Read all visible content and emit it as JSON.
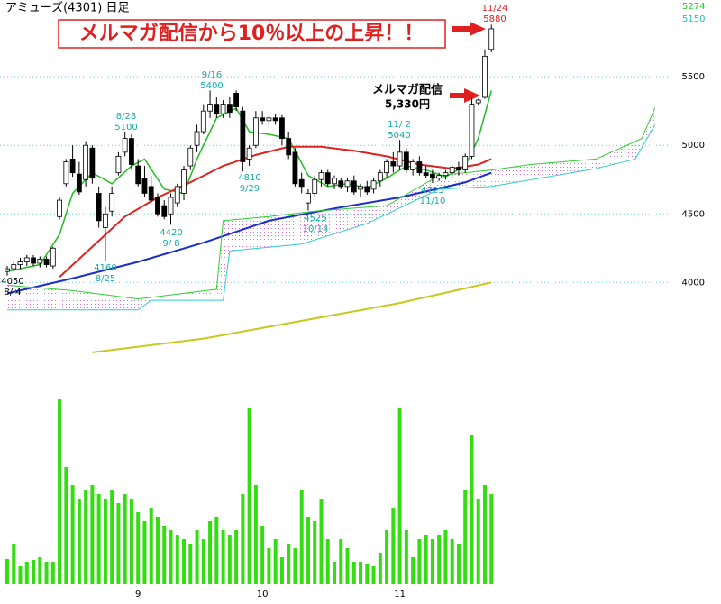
{
  "chart_data": {
    "type": "candlestick",
    "title": "アミューズ(4301) 日足",
    "banner": "メルマガ配信から10％以上の上昇！！",
    "callout": [
      "メルマガ配信",
      "5,330円"
    ],
    "categories": [
      null,
      null,
      null,
      null,
      null,
      null,
      null,
      null,
      null,
      null,
      null,
      null,
      null,
      null,
      null,
      null,
      null,
      null,
      null,
      null,
      "9",
      null,
      null,
      null,
      null,
      null,
      null,
      null,
      null,
      null,
      null,
      null,
      null,
      null,
      null,
      null,
      null,
      null,
      null,
      "10",
      null,
      null,
      null,
      null,
      null,
      null,
      null,
      null,
      null,
      null,
      null,
      null,
      null,
      null,
      null,
      null,
      null,
      null,
      null,
      null,
      "11",
      null,
      null,
      null,
      null,
      null,
      null,
      null,
      null,
      null,
      null,
      null,
      null,
      null,
      null
    ],
    "open": [
      4080,
      4100,
      4130,
      4150,
      4180,
      4140,
      4170,
      4120,
      4480,
      4720,
      4900,
      4790,
      4750,
      4980,
      4650,
      4400,
      4520,
      4800,
      4950,
      5050,
      4850,
      4760,
      4700,
      4620,
      4560,
      4500,
      4580,
      4650,
      4850,
      5000,
      5100,
      5250,
      5300,
      5230,
      5300,
      5380,
      5250,
      4900,
      5000,
      5200,
      5180,
      5200,
      5200,
      5050,
      4950,
      4750,
      4580,
      4650,
      4750,
      4800,
      4720,
      4740,
      4700,
      4740,
      4680,
      4700,
      4680,
      4740,
      4800,
      4880,
      4850,
      4950,
      4820,
      4880,
      4800,
      4790,
      4760,
      4780,
      4800,
      4840,
      4820,
      4920,
      5310,
      5350,
      5700
    ],
    "high": [
      4120,
      4150,
      4180,
      4200,
      4200,
      4190,
      4190,
      4260,
      4620,
      4900,
      5000,
      4880,
      5030,
      5000,
      4700,
      4550,
      4700,
      4950,
      5100,
      5080,
      4900,
      4850,
      4780,
      4650,
      4600,
      4650,
      4720,
      4850,
      5000,
      5150,
      5300,
      5400,
      5350,
      5330,
      5350,
      5400,
      5280,
      5000,
      5250,
      5250,
      5220,
      5230,
      5220,
      5100,
      4980,
      4800,
      4680,
      4780,
      4820,
      4820,
      4780,
      4760,
      4760,
      4780,
      4720,
      4740,
      4760,
      4820,
      4900,
      4950,
      5040,
      4980,
      4900,
      4920,
      4850,
      4820,
      4800,
      4820,
      4860,
      4880,
      4940,
      5350,
      5340,
      5700,
      5880
    ],
    "low": [
      4050,
      4080,
      4100,
      4120,
      4120,
      4110,
      4110,
      4100,
      4460,
      4700,
      4770,
      4640,
      4700,
      4720,
      4400,
      4160,
      4480,
      4780,
      4920,
      4820,
      4700,
      4620,
      4580,
      4480,
      4460,
      4420,
      4550,
      4600,
      4820,
      4950,
      5080,
      5200,
      5200,
      5200,
      5200,
      5250,
      4810,
      4850,
      4980,
      5150,
      5120,
      5150,
      5000,
      4900,
      4700,
      4650,
      4525,
      4620,
      4700,
      4700,
      4680,
      4680,
      4660,
      4640,
      4620,
      4640,
      4650,
      4700,
      4760,
      4800,
      4820,
      4800,
      4780,
      4780,
      4760,
      4725,
      4740,
      4750,
      4760,
      4780,
      4800,
      4900,
      5290,
      5340,
      5680
    ],
    "close": [
      4100,
      4130,
      4150,
      4180,
      4140,
      4170,
      4130,
      4250,
      4600,
      4880,
      4800,
      4660,
      5000,
      4760,
      4450,
      4500,
      4650,
      4920,
      5050,
      4860,
      4720,
      4650,
      4600,
      4500,
      4480,
      4620,
      4700,
      4820,
      4980,
      5100,
      5250,
      5300,
      5230,
      5300,
      5240,
      5280,
      4880,
      4980,
      5200,
      5180,
      5200,
      5180,
      5050,
      4930,
      4720,
      4700,
      4650,
      4750,
      4800,
      4720,
      4760,
      4700,
      4740,
      4660,
      4700,
      4660,
      4740,
      4800,
      4880,
      4850,
      4950,
      4820,
      4880,
      4800,
      4780,
      4760,
      4780,
      4800,
      4840,
      4820,
      4920,
      5300,
      5330,
      5650,
      5850
    ],
    "volume": [
      28,
      45,
      20,
      25,
      27,
      30,
      25,
      25,
      205,
      130,
      110,
      95,
      105,
      110,
      100,
      95,
      105,
      90,
      100,
      95,
      80,
      70,
      85,
      75,
      65,
      60,
      55,
      50,
      45,
      60,
      50,
      70,
      75,
      60,
      55,
      60,
      100,
      195,
      110,
      65,
      40,
      50,
      30,
      45,
      40,
      105,
      75,
      70,
      95,
      50,
      25,
      50,
      40,
      25,
      25,
      22,
      20,
      35,
      60,
      85,
      195,
      60,
      30,
      50,
      55,
      50,
      55,
      60,
      50,
      45,
      105,
      165,
      95,
      110,
      100
    ],
    "volume_ylim": [
      0,
      215
    ],
    "volume_color": "#33dd11",
    "overlays": [
      {
        "color": "#22bb22",
        "width": 1.5,
        "x": [
          0,
          5,
          8,
          10,
          13,
          16,
          19,
          21,
          24,
          27,
          29,
          32,
          35,
          37,
          40,
          43,
          46,
          49,
          52,
          55,
          58,
          61,
          64,
          67,
          70,
          72,
          74
        ],
        "values": [
          4080,
          4130,
          4350,
          4650,
          4800,
          4720,
          4850,
          4900,
          4680,
          4650,
          4900,
          5200,
          5270,
          5100,
          5080,
          5050,
          4780,
          4700,
          4720,
          4690,
          4760,
          4850,
          4820,
          4770,
          4850,
          5050,
          5400
        ]
      },
      {
        "color": "#dd2222",
        "width": 2,
        "x": [
          8,
          13,
          18,
          23,
          28,
          33,
          38,
          43,
          48,
          53,
          58,
          63,
          68,
          72,
          74
        ],
        "values": [
          4040,
          4260,
          4480,
          4620,
          4730,
          4850,
          4930,
          4990,
          4990,
          4960,
          4920,
          4860,
          4830,
          4860,
          4900
        ]
      },
      {
        "color": "#1a2ecc",
        "width": 2,
        "x": [
          0,
          10,
          20,
          30,
          40,
          50,
          60,
          70,
          74
        ],
        "values": [
          3920,
          4030,
          4150,
          4290,
          4450,
          4540,
          4620,
          4730,
          4800
        ]
      },
      {
        "color": "#c8c820",
        "width": 2,
        "x": [
          13,
          30,
          45,
          60,
          74
        ],
        "values": [
          3490,
          3590,
          3720,
          3850,
          4000
        ]
      },
      {
        "color": "#33cc33",
        "width": 1,
        "x": [
          0,
          10,
          20,
          32,
          33,
          40,
          47,
          58,
          66,
          74,
          80,
          90,
          97,
          99
        ],
        "values": [
          3980,
          3940,
          3880,
          3950,
          4450,
          4480,
          4520,
          4560,
          4780,
          4820,
          4860,
          4900,
          5050,
          5274
        ]
      },
      {
        "color": "#33cccc",
        "width": 1,
        "x": [
          0,
          20,
          22,
          33,
          34,
          45,
          55,
          66,
          74,
          90,
          96,
          99
        ],
        "values": [
          3800,
          3800,
          3870,
          3870,
          4230,
          4280,
          4430,
          4680,
          4700,
          4830,
          4900,
          5150
        ]
      }
    ],
    "annotations": [
      {
        "index": 0,
        "lines": [
          "4050",
          "8/ 4"
        ]
      },
      {
        "index": 15,
        "lines": [
          "4160",
          "8/25"
        ]
      },
      {
        "index": 18,
        "lines": [
          "8/28",
          "5100"
        ]
      },
      {
        "index": 25,
        "lines": [
          "4420",
          "9/ 8"
        ]
      },
      {
        "index": 31,
        "lines": [
          "9/16",
          "5400"
        ]
      },
      {
        "index": 36,
        "lines": [
          "4810",
          "9/29"
        ]
      },
      {
        "index": 46,
        "lines": [
          "4525",
          "10/14"
        ]
      },
      {
        "index": 60,
        "lines": [
          "11/ 2",
          "5040"
        ]
      },
      {
        "index": 65,
        "lines": [
          "4725",
          "11/10"
        ]
      },
      {
        "index": 74,
        "lines": [
          "11/24",
          "5880"
        ]
      }
    ],
    "ylim": [
      3430,
      6060
    ],
    "yticks": [
      4000,
      4500,
      5000,
      5500
    ],
    "grid": true
  }
}
